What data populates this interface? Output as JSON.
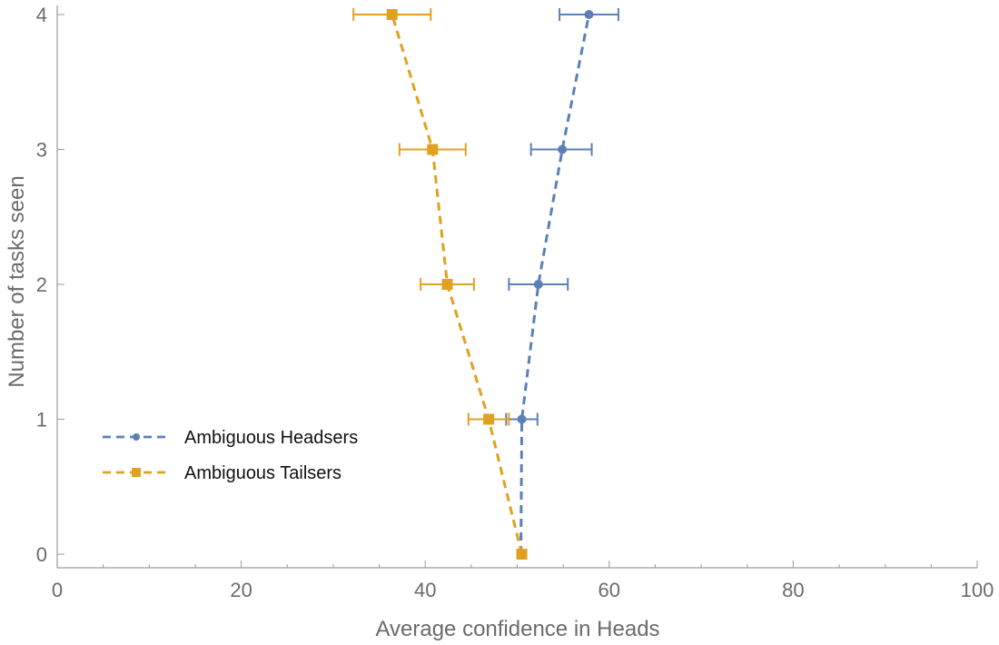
{
  "chart_data": {
    "type": "line",
    "title": "",
    "xlabel": "Average confidence in Heads",
    "ylabel": "Number of tasks seen",
    "xlim": [
      0,
      100
    ],
    "ylim": [
      0,
      4
    ],
    "x_ticks": [
      "0",
      "20",
      "40",
      "60",
      "80",
      "100"
    ],
    "y_ticks": [
      "0",
      "1",
      "2",
      "3",
      "4"
    ],
    "orientation": "horizontal-error-bars",
    "grid": false,
    "legend_position": "left",
    "series": [
      {
        "name": "Ambiguous Headsers",
        "color": "#5b80b8",
        "marker": "circle",
        "line_style": "dashed",
        "points": [
          {
            "y": 0,
            "x": 50.4,
            "err_low": 50.4,
            "err_high": 50.4
          },
          {
            "y": 1,
            "x": 50.5,
            "err_low": 48.8,
            "err_high": 52.2
          },
          {
            "y": 2,
            "x": 52.3,
            "err_low": 49.1,
            "err_high": 55.5
          },
          {
            "y": 3,
            "x": 54.9,
            "err_low": 51.5,
            "err_high": 58.1
          },
          {
            "y": 4,
            "x": 57.8,
            "err_low": 54.6,
            "err_high": 61.0
          }
        ]
      },
      {
        "name": "Ambiguous Tailsers",
        "color": "#e0a020",
        "marker": "square",
        "line_style": "dashed",
        "points": [
          {
            "y": 0,
            "x": 50.5,
            "err_low": 50.5,
            "err_high": 50.5
          },
          {
            "y": 1,
            "x": 46.9,
            "err_low": 44.7,
            "err_high": 49.1
          },
          {
            "y": 2,
            "x": 42.4,
            "err_low": 39.5,
            "err_high": 45.3
          },
          {
            "y": 3,
            "x": 40.8,
            "err_low": 37.2,
            "err_high": 44.4
          },
          {
            "y": 4,
            "x": 36.4,
            "err_low": 32.2,
            "err_high": 40.6
          }
        ]
      }
    ]
  }
}
